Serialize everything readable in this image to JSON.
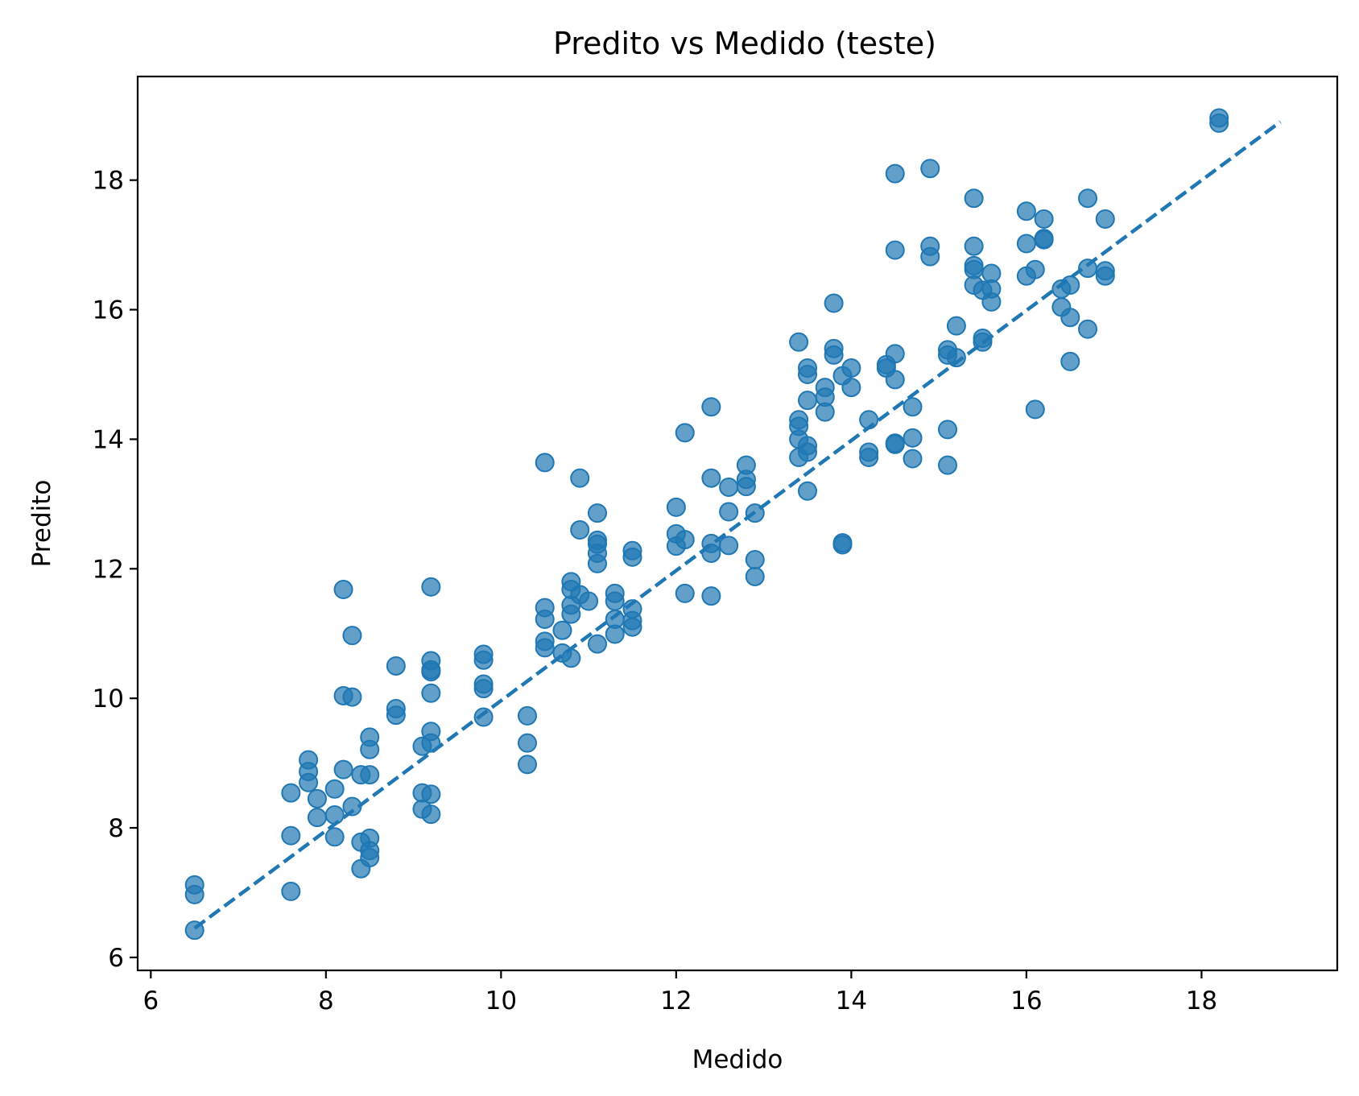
{
  "chart_data": {
    "type": "scatter",
    "title": "Predito vs Medido (teste)",
    "xlabel": "Medido",
    "ylabel": "Predito",
    "xlim": [
      5.85,
      19.55
    ],
    "ylim": [
      5.8,
      19.6
    ],
    "xticks": [
      6,
      8,
      10,
      12,
      14,
      16,
      18
    ],
    "yticks": [
      6,
      8,
      10,
      12,
      14,
      16,
      18
    ],
    "grid": false,
    "reference_line": {
      "style": "dashed",
      "color": "#1f77b4",
      "from": [
        6.5,
        6.45
      ],
      "to": [
        18.9,
        18.9
      ]
    },
    "color": "#1f77b4",
    "points": [
      [
        6.5,
        7.12
      ],
      [
        6.5,
        6.97
      ],
      [
        6.5,
        6.42
      ],
      [
        7.6,
        8.54
      ],
      [
        7.6,
        7.88
      ],
      [
        7.6,
        7.02
      ],
      [
        7.8,
        9.05
      ],
      [
        7.8,
        8.87
      ],
      [
        7.8,
        8.7
      ],
      [
        7.9,
        8.45
      ],
      [
        7.9,
        8.16
      ],
      [
        8.1,
        8.6
      ],
      [
        8.1,
        8.2
      ],
      [
        8.1,
        7.86
      ],
      [
        8.2,
        11.68
      ],
      [
        8.2,
        10.04
      ],
      [
        8.2,
        8.9
      ],
      [
        8.3,
        10.97
      ],
      [
        8.3,
        10.02
      ],
      [
        8.3,
        8.33
      ],
      [
        8.4,
        8.82
      ],
      [
        8.4,
        7.78
      ],
      [
        8.4,
        7.37
      ],
      [
        8.5,
        9.4
      ],
      [
        8.5,
        9.21
      ],
      [
        8.5,
        8.82
      ],
      [
        8.5,
        7.84
      ],
      [
        8.5,
        7.65
      ],
      [
        8.5,
        7.54
      ],
      [
        8.8,
        10.5
      ],
      [
        8.8,
        9.84
      ],
      [
        8.8,
        9.74
      ],
      [
        9.1,
        9.26
      ],
      [
        9.1,
        8.54
      ],
      [
        9.1,
        8.29
      ],
      [
        9.2,
        11.72
      ],
      [
        9.2,
        10.58
      ],
      [
        9.2,
        10.44
      ],
      [
        9.2,
        10.41
      ],
      [
        9.2,
        10.08
      ],
      [
        9.2,
        9.49
      ],
      [
        9.2,
        9.31
      ],
      [
        9.2,
        8.52
      ],
      [
        9.2,
        8.21
      ],
      [
        9.8,
        10.68
      ],
      [
        9.8,
        10.59
      ],
      [
        9.8,
        10.22
      ],
      [
        9.8,
        10.15
      ],
      [
        9.8,
        9.71
      ],
      [
        10.3,
        9.73
      ],
      [
        10.3,
        9.31
      ],
      [
        10.3,
        8.98
      ],
      [
        10.5,
        13.64
      ],
      [
        10.5,
        11.4
      ],
      [
        10.5,
        11.22
      ],
      [
        10.5,
        10.88
      ],
      [
        10.5,
        10.78
      ],
      [
        10.7,
        11.05
      ],
      [
        10.7,
        10.7
      ],
      [
        10.8,
        11.8
      ],
      [
        10.8,
        11.68
      ],
      [
        10.8,
        11.44
      ],
      [
        10.8,
        11.3
      ],
      [
        10.8,
        10.62
      ],
      [
        10.9,
        13.4
      ],
      [
        10.9,
        12.6
      ],
      [
        10.9,
        11.6
      ],
      [
        11.0,
        11.5
      ],
      [
        11.1,
        12.86
      ],
      [
        11.1,
        12.44
      ],
      [
        11.1,
        12.38
      ],
      [
        11.1,
        12.24
      ],
      [
        11.1,
        12.08
      ],
      [
        11.1,
        10.84
      ],
      [
        11.3,
        11.62
      ],
      [
        11.3,
        11.5
      ],
      [
        11.3,
        11.22
      ],
      [
        11.3,
        10.99
      ],
      [
        11.5,
        12.28
      ],
      [
        11.5,
        12.18
      ],
      [
        11.5,
        11.38
      ],
      [
        11.5,
        11.2
      ],
      [
        11.5,
        11.1
      ],
      [
        12.0,
        12.95
      ],
      [
        12.0,
        12.54
      ],
      [
        12.0,
        12.35
      ],
      [
        12.1,
        14.1
      ],
      [
        12.1,
        12.45
      ],
      [
        12.1,
        11.62
      ],
      [
        12.4,
        14.5
      ],
      [
        12.4,
        13.4
      ],
      [
        12.4,
        12.39
      ],
      [
        12.4,
        12.24
      ],
      [
        12.4,
        11.58
      ],
      [
        12.6,
        13.26
      ],
      [
        12.6,
        12.88
      ],
      [
        12.6,
        12.36
      ],
      [
        12.8,
        13.6
      ],
      [
        12.8,
        13.38
      ],
      [
        12.8,
        13.27
      ],
      [
        12.9,
        12.86
      ],
      [
        12.9,
        12.14
      ],
      [
        12.9,
        11.88
      ],
      [
        13.4,
        15.5
      ],
      [
        13.4,
        14.3
      ],
      [
        13.4,
        14.2
      ],
      [
        13.4,
        14.0
      ],
      [
        13.4,
        13.72
      ],
      [
        13.5,
        15.1
      ],
      [
        13.5,
        15.0
      ],
      [
        13.5,
        14.6
      ],
      [
        13.5,
        13.9
      ],
      [
        13.5,
        13.8
      ],
      [
        13.5,
        13.2
      ],
      [
        13.7,
        14.8
      ],
      [
        13.7,
        14.65
      ],
      [
        13.7,
        14.42
      ],
      [
        13.8,
        16.1
      ],
      [
        13.8,
        15.4
      ],
      [
        13.8,
        15.3
      ],
      [
        13.9,
        14.98
      ],
      [
        13.9,
        12.4
      ],
      [
        13.9,
        12.37
      ],
      [
        14.0,
        15.1
      ],
      [
        14.0,
        14.8
      ],
      [
        14.2,
        14.3
      ],
      [
        14.2,
        13.8
      ],
      [
        14.2,
        13.72
      ],
      [
        14.4,
        15.15
      ],
      [
        14.4,
        15.1
      ],
      [
        14.5,
        18.1
      ],
      [
        14.5,
        16.92
      ],
      [
        14.5,
        15.32
      ],
      [
        14.5,
        14.92
      ],
      [
        14.5,
        13.94
      ],
      [
        14.5,
        13.92
      ],
      [
        14.7,
        14.5
      ],
      [
        14.7,
        14.02
      ],
      [
        14.7,
        13.7
      ],
      [
        14.9,
        18.18
      ],
      [
        14.9,
        16.98
      ],
      [
        14.9,
        16.82
      ],
      [
        15.1,
        15.38
      ],
      [
        15.1,
        15.3
      ],
      [
        15.1,
        14.15
      ],
      [
        15.1,
        13.6
      ],
      [
        15.2,
        15.75
      ],
      [
        15.2,
        15.26
      ],
      [
        15.4,
        17.72
      ],
      [
        15.4,
        16.98
      ],
      [
        15.4,
        16.68
      ],
      [
        15.4,
        16.62
      ],
      [
        15.4,
        16.38
      ],
      [
        15.5,
        16.3
      ],
      [
        15.5,
        15.56
      ],
      [
        15.5,
        15.5
      ],
      [
        15.6,
        16.56
      ],
      [
        15.6,
        16.32
      ],
      [
        15.6,
        16.12
      ],
      [
        16.0,
        17.52
      ],
      [
        16.0,
        17.02
      ],
      [
        16.0,
        16.52
      ],
      [
        16.1,
        16.62
      ],
      [
        16.1,
        14.46
      ],
      [
        16.2,
        17.4
      ],
      [
        16.2,
        17.1
      ],
      [
        16.2,
        17.08
      ],
      [
        16.4,
        16.32
      ],
      [
        16.4,
        16.04
      ],
      [
        16.5,
        16.38
      ],
      [
        16.5,
        15.88
      ],
      [
        16.5,
        15.2
      ],
      [
        16.7,
        17.72
      ],
      [
        16.7,
        16.64
      ],
      [
        16.7,
        15.7
      ],
      [
        16.9,
        17.4
      ],
      [
        16.9,
        16.6
      ],
      [
        16.9,
        16.52
      ],
      [
        18.2,
        18.96
      ],
      [
        18.2,
        18.88
      ]
    ]
  }
}
